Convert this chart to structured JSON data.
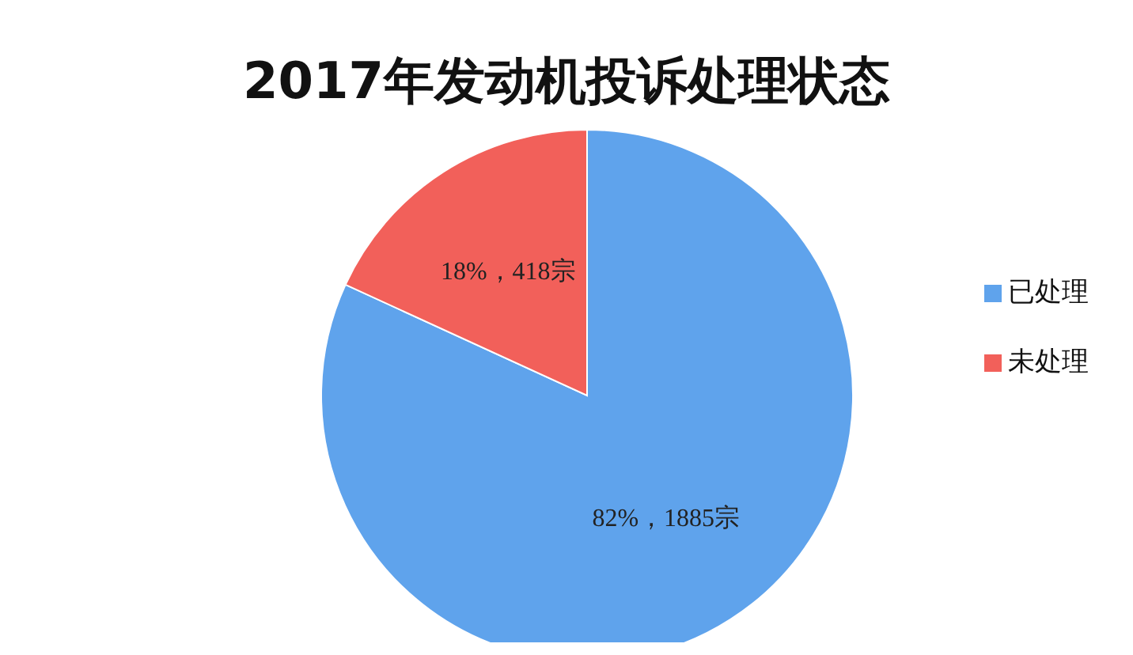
{
  "chart_data": {
    "type": "pie",
    "title": "2017年发动机投诉处理状态",
    "categories": [
      "已处理",
      "未处理"
    ],
    "values": [
      1885,
      418
    ],
    "colors": [
      "#5fa3ec",
      "#f2605a"
    ],
    "value_labels": [
      "82%，1885宗",
      "18%，418宗"
    ],
    "legend": "right"
  }
}
